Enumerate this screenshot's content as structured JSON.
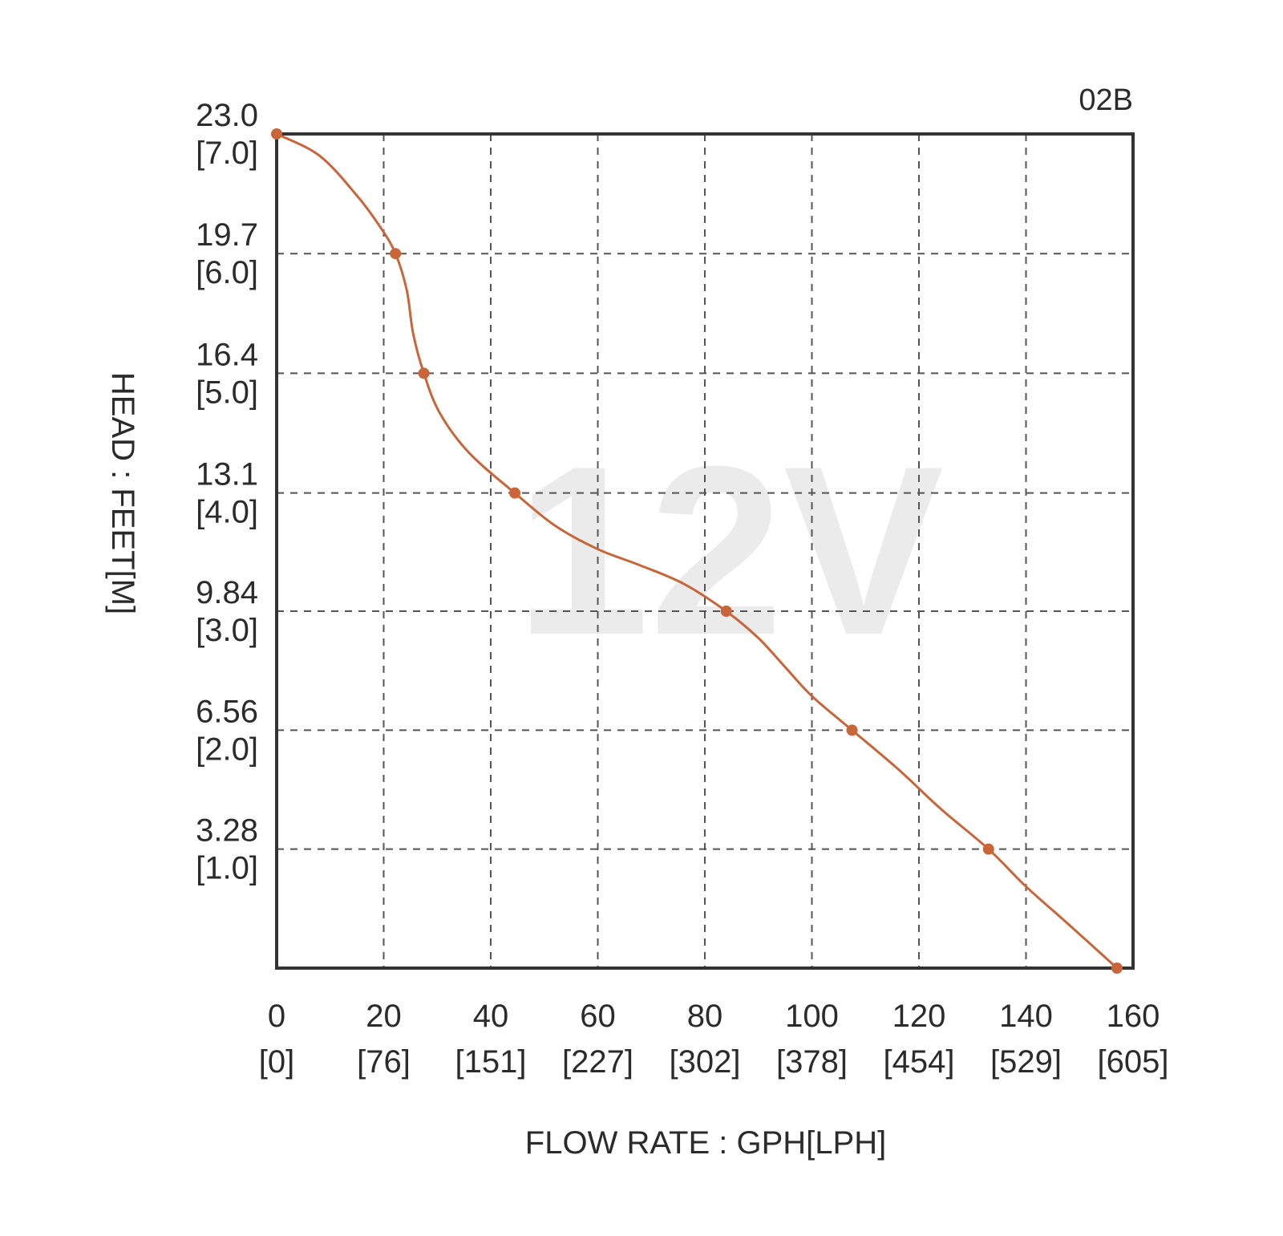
{
  "chart_data": {
    "type": "line",
    "corner_label": "02B",
    "watermark": "12V",
    "xlabel": "FLOW RATE : GPH[LPH]",
    "ylabel": "HEAD : FEET[M]",
    "xlim": [
      0,
      160
    ],
    "ylim": [
      0,
      23.0
    ],
    "grid": true,
    "x_ticks": [
      {
        "value": 0,
        "label": "0",
        "sublabel": "[0]"
      },
      {
        "value": 20,
        "label": "20",
        "sublabel": "[76]"
      },
      {
        "value": 40,
        "label": "40",
        "sublabel": "[151]"
      },
      {
        "value": 60,
        "label": "60",
        "sublabel": "[227]"
      },
      {
        "value": 80,
        "label": "80",
        "sublabel": "[302]"
      },
      {
        "value": 100,
        "label": "100",
        "sublabel": "[378]"
      },
      {
        "value": 120,
        "label": "120",
        "sublabel": "[454]"
      },
      {
        "value": 140,
        "label": "140",
        "sublabel": "[529]"
      },
      {
        "value": 160,
        "label": "160",
        "sublabel": "[605]"
      }
    ],
    "y_ticks": [
      {
        "value": 3.28,
        "label": "3.28",
        "sublabel": "[1.0]"
      },
      {
        "value": 6.56,
        "label": "6.56",
        "sublabel": "[2.0]"
      },
      {
        "value": 9.84,
        "label": "9.84",
        "sublabel": "[3.0]"
      },
      {
        "value": 13.1,
        "label": "13.1",
        "sublabel": "[4.0]"
      },
      {
        "value": 16.4,
        "label": "16.4",
        "sublabel": "[5.0]"
      },
      {
        "value": 19.7,
        "label": "19.7",
        "sublabel": "[6.0]"
      },
      {
        "value": 23.0,
        "label": "23.0",
        "sublabel": "[7.0]"
      }
    ],
    "series": [
      {
        "color": "#c8663a",
        "points": [
          {
            "x": 0,
            "y": 23.0
          },
          {
            "x": 22.2,
            "y": 19.7
          },
          {
            "x": 27.5,
            "y": 16.4
          },
          {
            "x": 44.5,
            "y": 13.1
          },
          {
            "x": 84.0,
            "y": 9.84
          },
          {
            "x": 107.5,
            "y": 6.56
          },
          {
            "x": 133.0,
            "y": 3.28
          },
          {
            "x": 157.0,
            "y": 0
          }
        ],
        "curve": [
          [
            0,
            23.0
          ],
          [
            8,
            22.4
          ],
          [
            15,
            21.3
          ],
          [
            19.5,
            20.4
          ],
          [
            22.2,
            19.7
          ],
          [
            24.3,
            18.7
          ],
          [
            25.5,
            17.5
          ],
          [
            27.5,
            16.4
          ],
          [
            30.5,
            15.3
          ],
          [
            36,
            14.2
          ],
          [
            44.5,
            13.1
          ],
          [
            52,
            12.2
          ],
          [
            60,
            11.55
          ],
          [
            68,
            11.1
          ],
          [
            76,
            10.6
          ],
          [
            84.0,
            9.84
          ],
          [
            90,
            9.1
          ],
          [
            95,
            8.3
          ],
          [
            100,
            7.5
          ],
          [
            107.5,
            6.56
          ],
          [
            116,
            5.5
          ],
          [
            124,
            4.4
          ],
          [
            133.0,
            3.28
          ],
          [
            140,
            2.25
          ],
          [
            148,
            1.2
          ],
          [
            157.0,
            0
          ]
        ]
      }
    ]
  }
}
